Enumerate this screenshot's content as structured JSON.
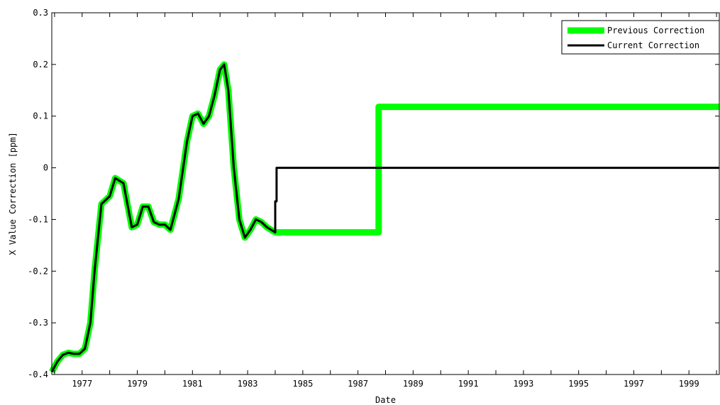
{
  "chart_data": {
    "type": "line",
    "xlabel": "Date",
    "ylabel": "X Value Correction [ppm]",
    "xlim": [
      1975.9,
      2000.1
    ],
    "ylim": [
      -0.4,
      0.3
    ],
    "x_ticks": [
      "1977",
      "1979",
      "1981",
      "1983",
      "1985",
      "1987",
      "1989",
      "1991",
      "1993",
      "1995",
      "1997",
      "1999"
    ],
    "y_ticks": [
      "0.3",
      "0.2",
      "0.1",
      "0",
      "-0.1",
      "-0.2",
      "-0.3",
      "-0.4"
    ],
    "legend": {
      "position": "top-right",
      "entries": [
        "Previous Correction",
        "Current Correction"
      ]
    },
    "grid": false,
    "series": [
      {
        "name": "Previous Correction",
        "color": "#00ff00",
        "x": [
          1975.9,
          1976.1,
          1976.3,
          1976.5,
          1976.7,
          1976.9,
          1977.1,
          1977.3,
          1977.45,
          1977.7,
          1978.0,
          1978.2,
          1978.5,
          1978.8,
          1979.0,
          1979.2,
          1979.4,
          1979.6,
          1979.8,
          1980.0,
          1980.2,
          1980.5,
          1980.8,
          1981.0,
          1981.2,
          1981.4,
          1981.6,
          1981.8,
          1982.0,
          1982.15,
          1982.3,
          1982.5,
          1982.7,
          1982.9,
          1983.1,
          1983.3,
          1983.5,
          1983.7,
          1984.0,
          1987.75,
          1987.75,
          2000.1
        ],
        "y": [
          -0.395,
          -0.375,
          -0.362,
          -0.358,
          -0.36,
          -0.36,
          -0.35,
          -0.3,
          -0.2,
          -0.07,
          -0.055,
          -0.02,
          -0.03,
          -0.115,
          -0.11,
          -0.075,
          -0.075,
          -0.105,
          -0.11,
          -0.11,
          -0.12,
          -0.06,
          0.05,
          0.1,
          0.105,
          0.085,
          0.1,
          0.14,
          0.19,
          0.2,
          0.15,
          0.0,
          -0.1,
          -0.135,
          -0.12,
          -0.1,
          -0.105,
          -0.115,
          -0.125,
          -0.125,
          0.118,
          0.118
        ]
      },
      {
        "name": "Current Correction",
        "color": "#000000",
        "x": [
          1975.9,
          1976.1,
          1976.3,
          1976.5,
          1976.7,
          1976.9,
          1977.1,
          1977.3,
          1977.45,
          1977.7,
          1978.0,
          1978.2,
          1978.5,
          1978.8,
          1979.0,
          1979.2,
          1979.4,
          1979.6,
          1979.8,
          1980.0,
          1980.2,
          1980.5,
          1980.8,
          1981.0,
          1981.2,
          1981.4,
          1981.6,
          1981.8,
          1982.0,
          1982.15,
          1982.3,
          1982.5,
          1982.7,
          1982.9,
          1983.1,
          1983.3,
          1983.5,
          1983.7,
          1984.0,
          1984.0,
          1984.05,
          1984.05,
          2000.1
        ],
        "y": [
          -0.395,
          -0.375,
          -0.362,
          -0.358,
          -0.36,
          -0.36,
          -0.35,
          -0.3,
          -0.2,
          -0.07,
          -0.055,
          -0.02,
          -0.03,
          -0.115,
          -0.11,
          -0.075,
          -0.075,
          -0.105,
          -0.11,
          -0.11,
          -0.12,
          -0.06,
          0.05,
          0.1,
          0.105,
          0.085,
          0.1,
          0.14,
          0.19,
          0.2,
          0.15,
          0.0,
          -0.1,
          -0.135,
          -0.12,
          -0.1,
          -0.105,
          -0.115,
          -0.125,
          -0.065,
          -0.065,
          0.0,
          0.0
        ]
      }
    ]
  }
}
